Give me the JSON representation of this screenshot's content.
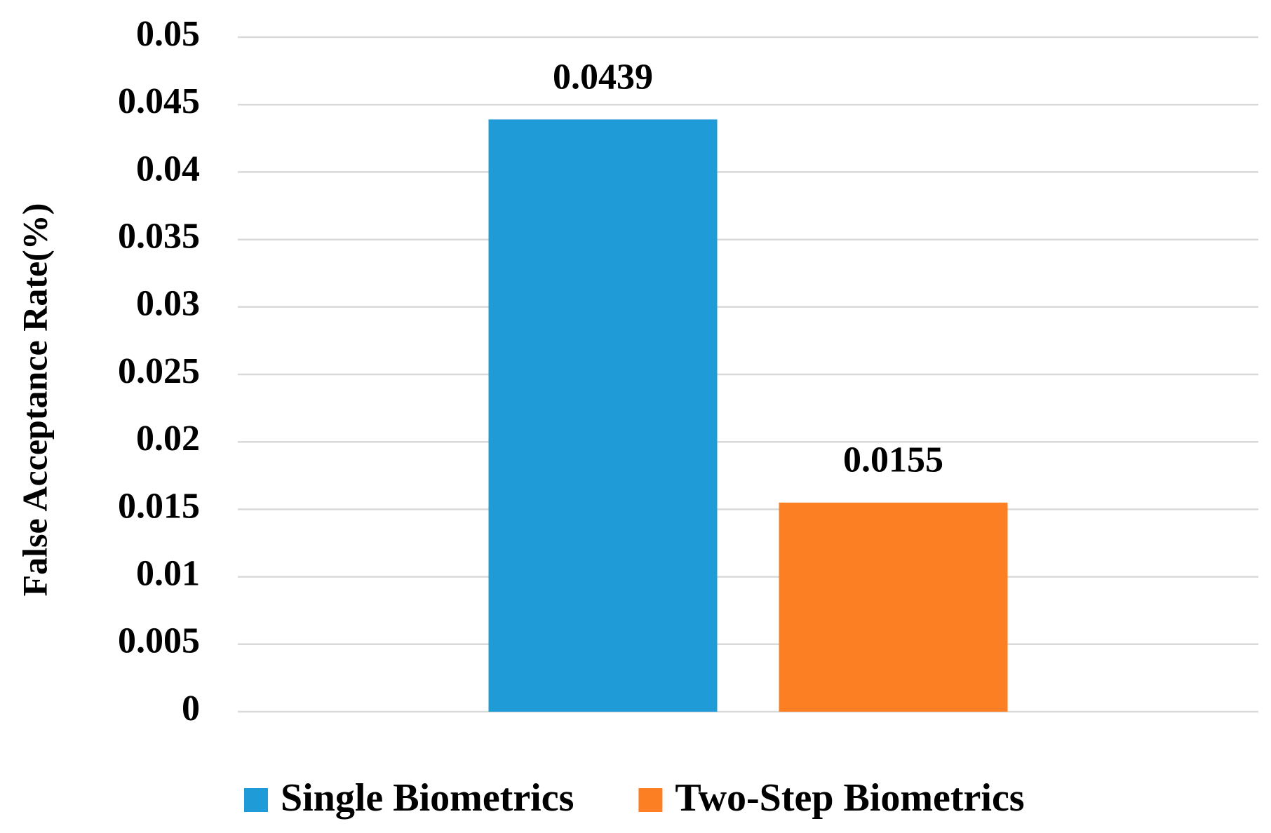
{
  "chart_data": {
    "type": "bar",
    "y_label": "False Acceptance Rate(%)",
    "categories": [
      null
    ],
    "series": [
      {
        "name": "Single Biometrics",
        "color": "#1f9bd7",
        "values": [
          0.0439
        ]
      },
      {
        "name": "Two-Step Biometrics",
        "color": "#fd7f23",
        "values": [
          0.0155
        ]
      }
    ],
    "ylim": [
      0,
      0.05
    ],
    "yticks": [
      0,
      0.005,
      0.01,
      0.015,
      0.02,
      0.025,
      0.03,
      0.035,
      0.04,
      0.045,
      0.05
    ],
    "grid": true,
    "legend": "bottom"
  }
}
